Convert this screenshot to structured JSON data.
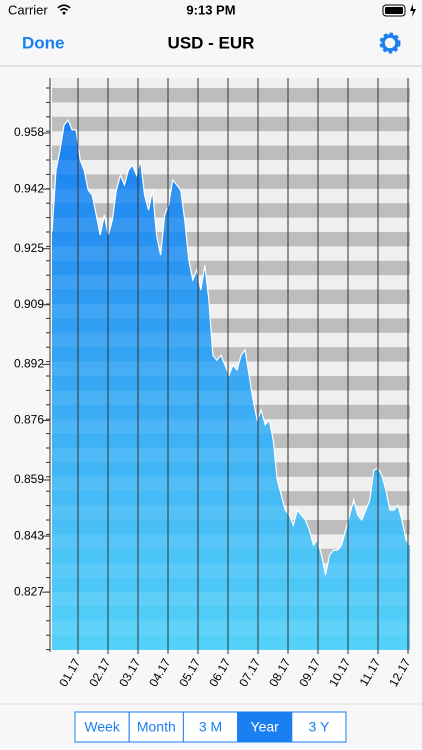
{
  "status_bar": {
    "carrier": "Carrier",
    "time": "9:13 PM"
  },
  "nav": {
    "left": "Done",
    "title": "USD - EUR"
  },
  "chart_data": {
    "type": "area",
    "line_color": "#ffffff",
    "fill_top": "#1a7ff0",
    "fill_bottom": "#55d2f8",
    "xticks": [
      "01.17",
      "02.17",
      "03.17",
      "04.17",
      "05.17",
      "06.17",
      "07.17",
      "08.17",
      "09.17",
      "10.17",
      "11.17",
      "12.17"
    ],
    "ylim": [
      0.8105,
      0.9737
    ],
    "yticks": [
      0.827,
      0.843,
      0.859,
      0.876,
      0.892,
      0.909,
      0.925,
      0.942,
      0.958
    ],
    "values": [
      0.9298,
      0.9474,
      0.9532,
      0.9603,
      0.9617,
      0.9589,
      0.9589,
      0.9503,
      0.9474,
      0.9417,
      0.9403,
      0.9346,
      0.9289,
      0.9346,
      0.9289,
      0.9332,
      0.9417,
      0.946,
      0.9432,
      0.9474,
      0.9489,
      0.946,
      0.9503,
      0.9403,
      0.936,
      0.9417,
      0.9289,
      0.9232,
      0.9346,
      0.9375,
      0.9446,
      0.9432,
      0.9417,
      0.9332,
      0.9218,
      0.9161,
      0.9189,
      0.9132,
      0.9203,
      0.9103,
      0.8946,
      0.8932,
      0.8946,
      0.8918,
      0.8889,
      0.8918,
      0.8904,
      0.8946,
      0.8961,
      0.8889,
      0.8818,
      0.8761,
      0.879,
      0.8747,
      0.8761,
      0.8704,
      0.859,
      0.8547,
      0.8504,
      0.849,
      0.8461,
      0.8504,
      0.849,
      0.8476,
      0.8447,
      0.8404,
      0.8419,
      0.8376,
      0.8319,
      0.8376,
      0.839,
      0.839,
      0.8404,
      0.8447,
      0.849,
      0.8533,
      0.849,
      0.8476,
      0.8504,
      0.8533,
      0.8618,
      0.8624,
      0.8604,
      0.8561,
      0.8504,
      0.8504,
      0.8518,
      0.8476,
      0.8419,
      0.8404
    ]
  },
  "segments": {
    "items": [
      "Week",
      "Month",
      "3 M",
      "Year",
      "3 Y"
    ],
    "selected": 3
  }
}
